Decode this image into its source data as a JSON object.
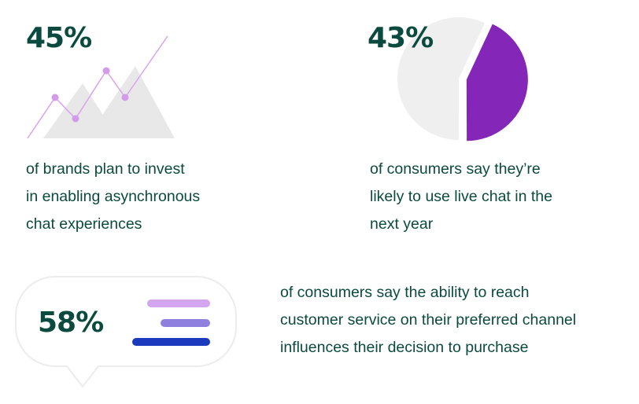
{
  "stats": [
    {
      "value": "45%",
      "description": [
        "of brands plan to invest",
        "in enabling asynchronous",
        "chat experiences"
      ]
    },
    {
      "value": "43%",
      "percent": 43,
      "description": [
        "of consumers say they’re",
        "likely to use live chat in the",
        "next year"
      ]
    },
    {
      "value": "58%",
      "description": [
        "of consumers say the ability to reach",
        "customer service on their preferred channel",
        "influences their decision to purchase"
      ]
    }
  ]
}
